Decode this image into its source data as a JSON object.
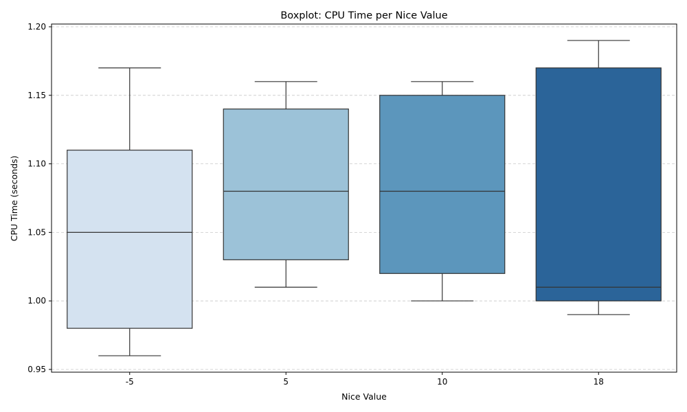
{
  "chart_data": {
    "type": "box",
    "title": "Boxplot: CPU Time per Nice Value",
    "xlabel": "Nice Value",
    "ylabel": "CPU Time (seconds)",
    "ylim": [
      0.948,
      1.202
    ],
    "yticks": [
      "0.95",
      "1.00",
      "1.05",
      "1.10",
      "1.15",
      "1.20"
    ],
    "ytick_values": [
      0.95,
      1.0,
      1.05,
      1.1,
      1.15,
      1.2
    ],
    "grid": "horizontal-dashed",
    "categories": [
      "-5",
      "5",
      "10",
      "18"
    ],
    "boxes": [
      {
        "category": "-5",
        "min": 0.96,
        "q1": 0.98,
        "median": 1.05,
        "q3": 1.11,
        "max": 1.17,
        "color": "#d4e2f0"
      },
      {
        "category": "5",
        "min": 1.01,
        "q1": 1.03,
        "median": 1.08,
        "q3": 1.14,
        "max": 1.16,
        "color": "#9cc2d8"
      },
      {
        "category": "10",
        "min": 1.0,
        "q1": 1.02,
        "median": 1.08,
        "q3": 1.15,
        "max": 1.16,
        "color": "#5c96bc"
      },
      {
        "category": "18",
        "min": 0.99,
        "q1": 1.0,
        "median": 1.01,
        "q3": 1.17,
        "max": 1.19,
        "color": "#2b6499"
      }
    ]
  }
}
